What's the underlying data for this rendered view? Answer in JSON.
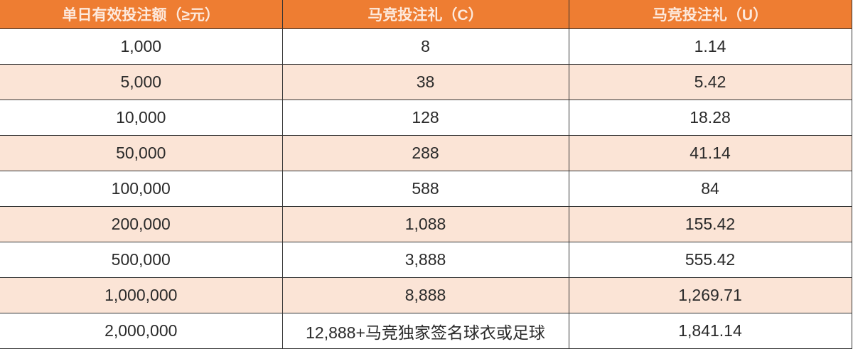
{
  "table": {
    "headers": [
      "单日有效投注额（≥元）",
      "马竞投注礼（C）",
      "马竞投注礼（U）"
    ],
    "rows": [
      [
        "1,000",
        "8",
        "1.14"
      ],
      [
        "5,000",
        "38",
        "5.42"
      ],
      [
        "10,000",
        "128",
        "18.28"
      ],
      [
        "50,000",
        "288",
        "41.14"
      ],
      [
        "100,000",
        "588",
        "84"
      ],
      [
        "200,000",
        "1,088",
        "155.42"
      ],
      [
        "500,000",
        "3,888",
        "555.42"
      ],
      [
        "1,000,000",
        "8,888",
        "1,269.71"
      ],
      [
        "2,000,000",
        "12,888+马竞独家签名球衣或足球",
        "1,841.14"
      ]
    ]
  },
  "colors": {
    "header_bg": "#ee7d32",
    "alt_row_bg": "#fbe4d6",
    "row_bg": "#ffffff"
  }
}
